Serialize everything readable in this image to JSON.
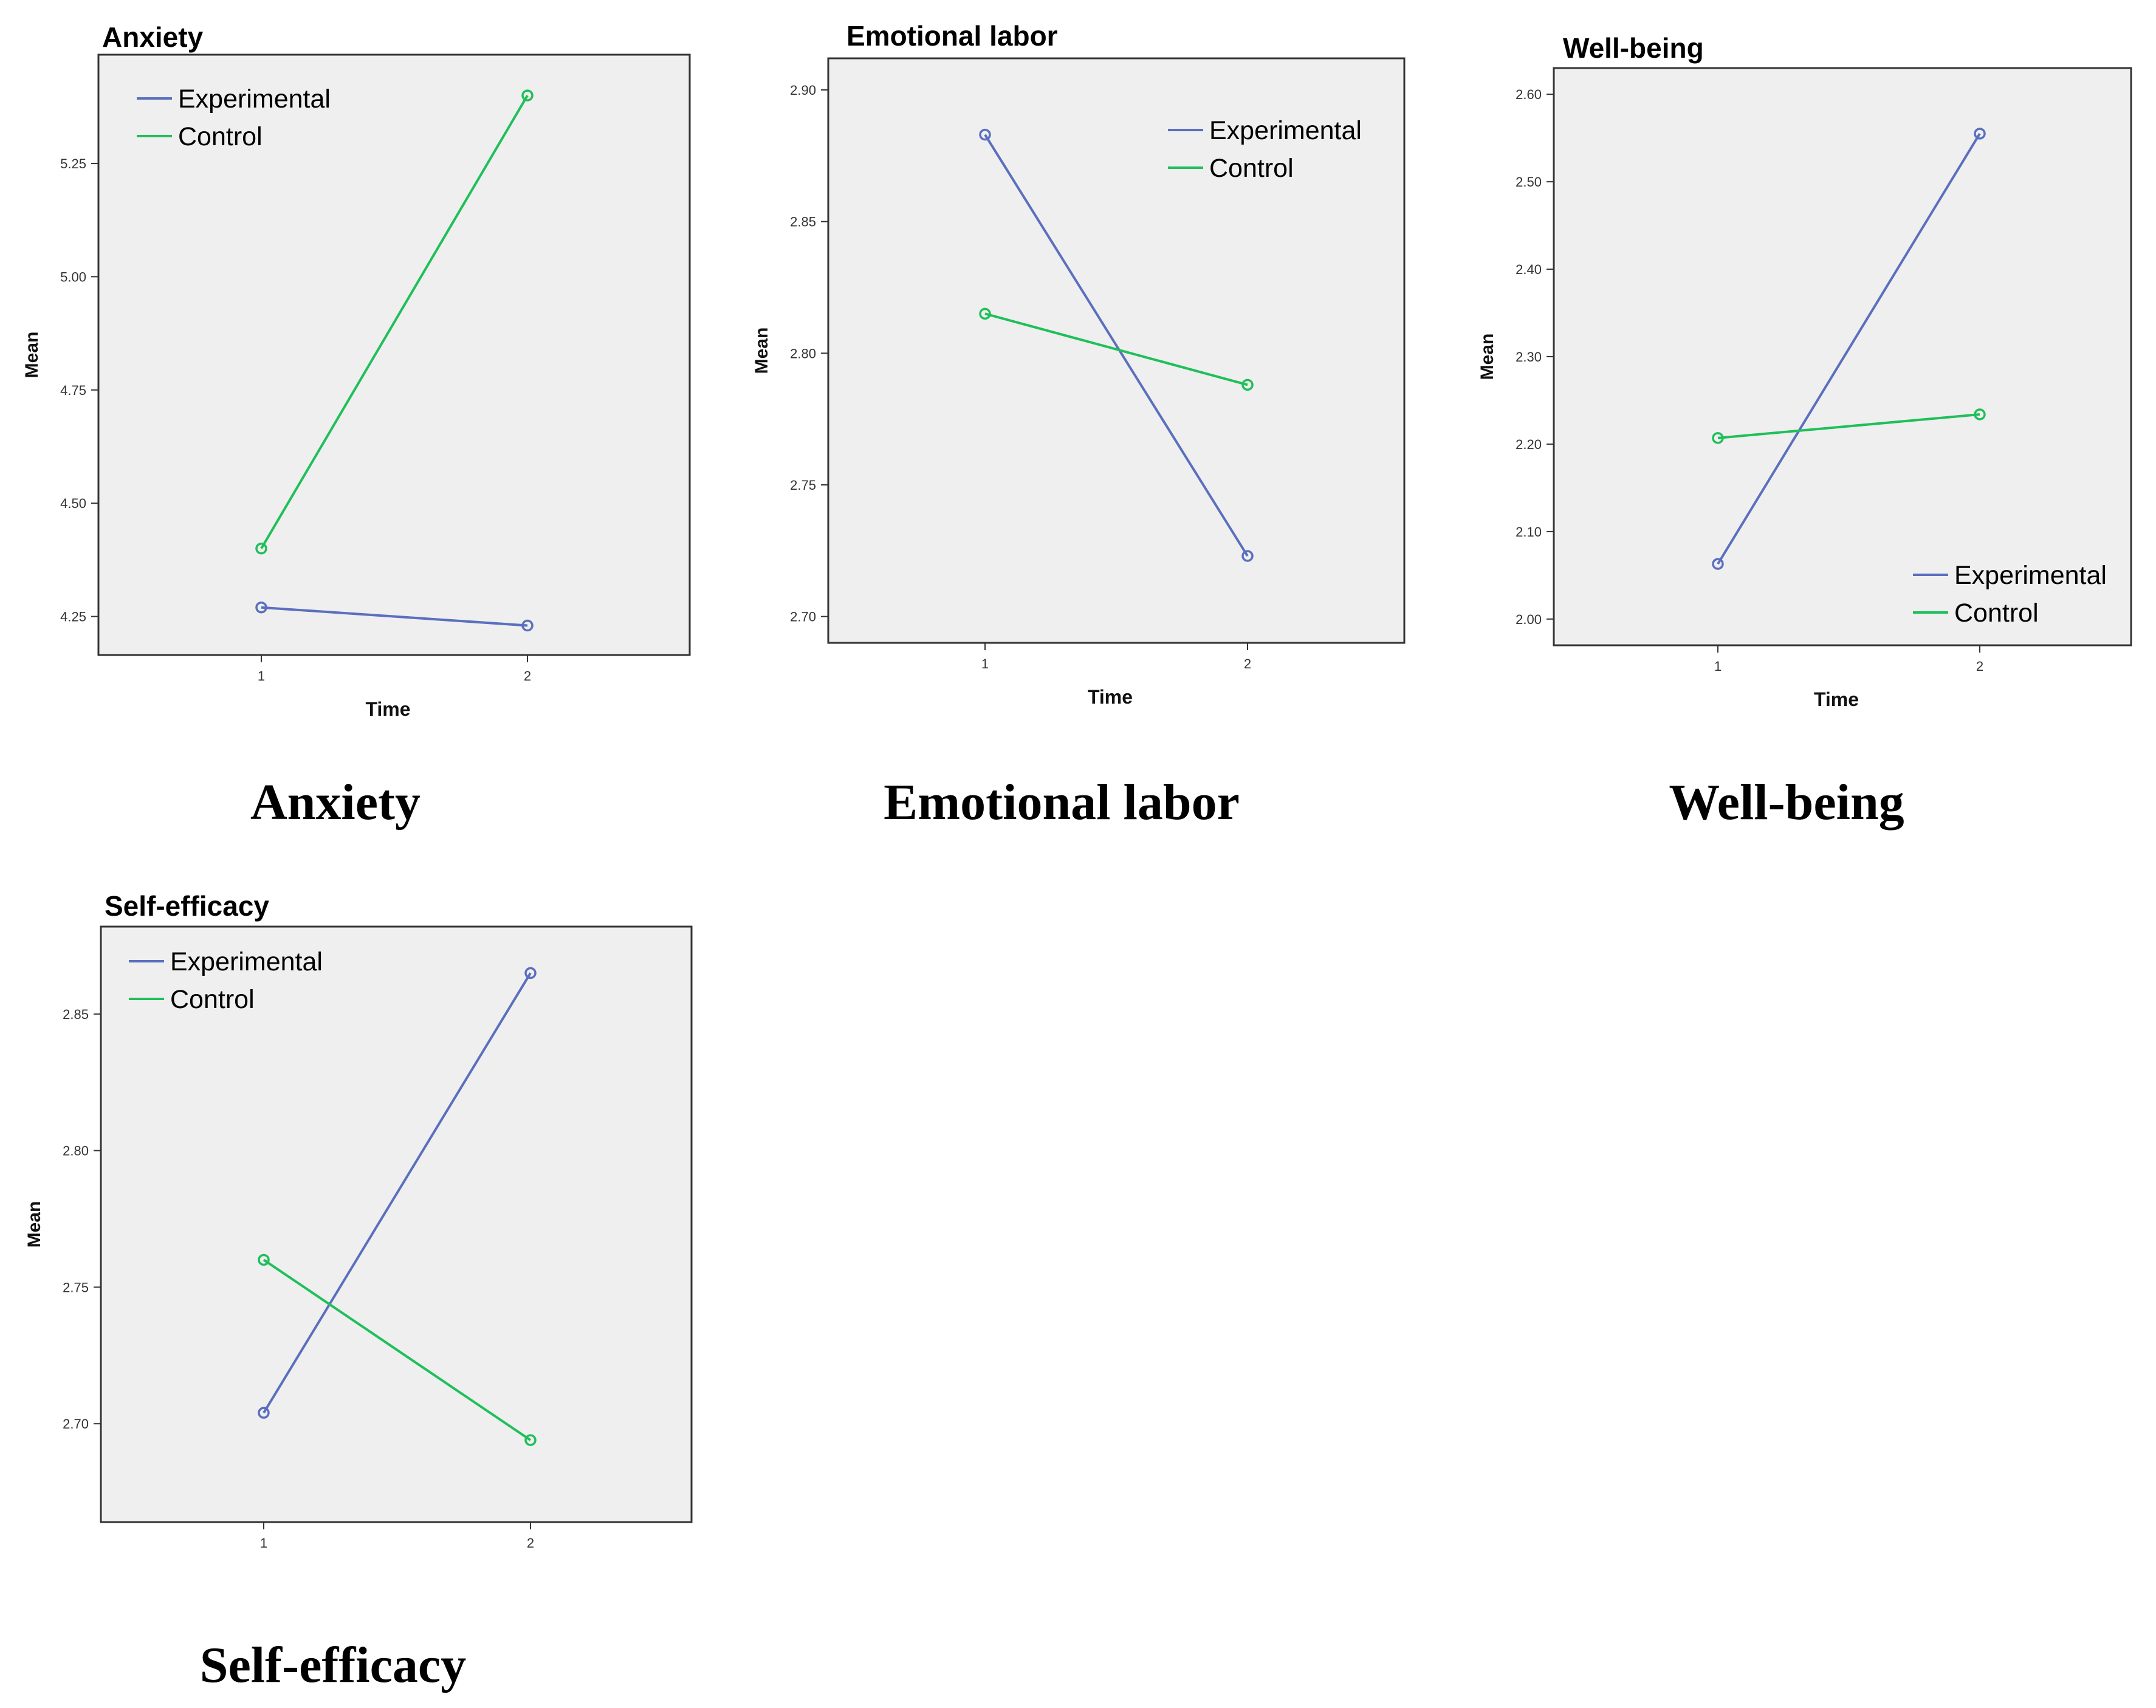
{
  "colors": {
    "experimental": "#5b6fbf",
    "control": "#1fbf5a",
    "plot_bg": "#efefef",
    "frame": "#333333"
  },
  "chart_data": [
    {
      "type": "line",
      "title": "Anxiety",
      "caption": "Anxiety",
      "xlabel": "Time",
      "ylabel": "Mean",
      "categories": [
        "1",
        "2"
      ],
      "ylim": [
        4.165,
        5.49
      ],
      "yticks": [
        "4.25",
        "4.50",
        "4.75",
        "5.00",
        "5.25"
      ],
      "legend_position": "top-left",
      "series": [
        {
          "name": "Experimental",
          "values": [
            4.27,
            4.23
          ]
        },
        {
          "name": "Control",
          "values": [
            4.4,
            5.4
          ]
        }
      ]
    },
    {
      "type": "line",
      "title": "Emotional labor",
      "caption": "Emotional labor",
      "xlabel": "Time",
      "ylabel": "Mean",
      "categories": [
        "1",
        "2"
      ],
      "ylim": [
        2.69,
        2.912
      ],
      "yticks": [
        "2.70",
        "2.75",
        "2.80",
        "2.85",
        "2.90"
      ],
      "legend_position": "top-right",
      "series": [
        {
          "name": "Experimental",
          "values": [
            2.883,
            2.723
          ]
        },
        {
          "name": "Control",
          "values": [
            2.815,
            2.788
          ]
        }
      ]
    },
    {
      "type": "line",
      "title": "Well-being",
      "caption": "Well-being",
      "xlabel": "Time",
      "ylabel": "Mean",
      "categories": [
        "1",
        "2"
      ],
      "ylim": [
        1.97,
        2.63
      ],
      "yticks": [
        "2.00",
        "2.10",
        "2.20",
        "2.30",
        "2.40",
        "2.50",
        "2.60"
      ],
      "legend_position": "bottom-right",
      "series": [
        {
          "name": "Experimental",
          "values": [
            2.063,
            2.555
          ]
        },
        {
          "name": "Control",
          "values": [
            2.207,
            2.234
          ]
        }
      ]
    },
    {
      "type": "line",
      "title": "Self-efficacy",
      "caption": "Self-efficacy",
      "xlabel": "Time",
      "ylabel": "Mean",
      "categories": [
        "1",
        "2"
      ],
      "ylim": [
        2.664,
        2.882
      ],
      "yticks": [
        "2.70",
        "2.75",
        "2.80",
        "2.85"
      ],
      "legend_position": "top-left",
      "series": [
        {
          "name": "Experimental",
          "values": [
            2.704,
            2.865
          ]
        },
        {
          "name": "Control",
          "values": [
            2.76,
            2.694
          ]
        }
      ]
    }
  ]
}
